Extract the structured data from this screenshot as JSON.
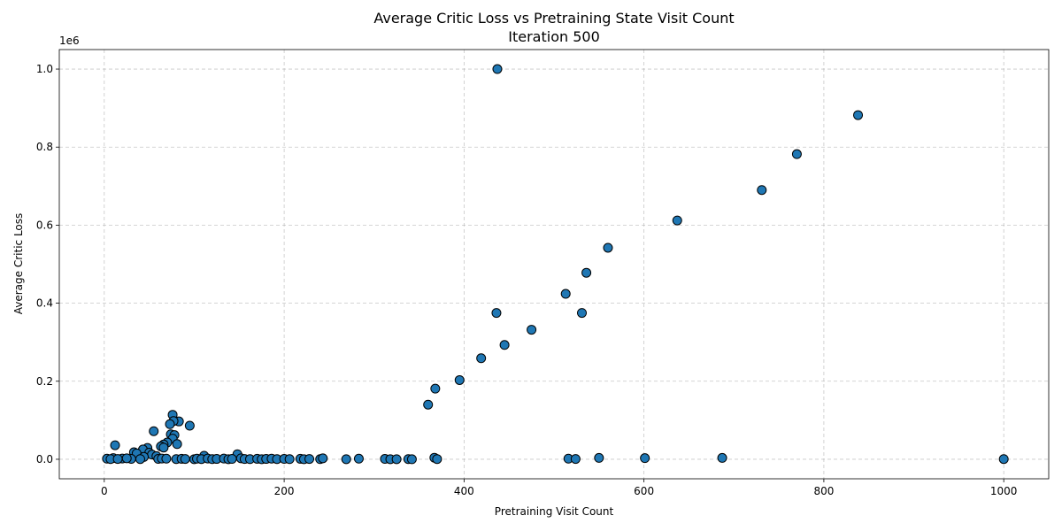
{
  "chart_data": {
    "type": "scatter",
    "title": "Average Critic Loss vs Pretraining State Visit Count",
    "subtitle": "Iteration 500",
    "xlabel": "Pretraining Visit Count",
    "ylabel": "Average Critic Loss",
    "y_offset_label": "1e6",
    "xlim": [
      -50,
      1050
    ],
    "ylim": [
      -50000,
      1050000
    ],
    "x_ticks": [
      0,
      200,
      400,
      600,
      800,
      1000
    ],
    "x_tick_labels": [
      "0",
      "200",
      "400",
      "600",
      "800",
      "1000"
    ],
    "y_ticks": [
      0,
      200000,
      400000,
      600000,
      800000,
      1000000
    ],
    "y_tick_labels": [
      "0.0",
      "0.2",
      "0.4",
      "0.6",
      "0.8",
      "1.0"
    ],
    "grid": true,
    "marker_color": "#1f77b4",
    "marker_edge": "#000000",
    "points": [
      [
        437,
        1000000
      ],
      [
        838,
        882000
      ],
      [
        770,
        782000
      ],
      [
        731,
        690000
      ],
      [
        637,
        612000
      ],
      [
        560,
        542000
      ],
      [
        536,
        478000
      ],
      [
        513,
        424000
      ],
      [
        436,
        375000
      ],
      [
        531,
        375000
      ],
      [
        475,
        332000
      ],
      [
        445,
        293000
      ],
      [
        419,
        259000
      ],
      [
        395,
        203000
      ],
      [
        368,
        181000
      ],
      [
        360,
        140000
      ],
      [
        76,
        114000
      ],
      [
        83,
        97000
      ],
      [
        77,
        98000
      ],
      [
        73,
        90000
      ],
      [
        95,
        86000
      ],
      [
        55,
        72000
      ],
      [
        74,
        64000
      ],
      [
        78,
        62000
      ],
      [
        76,
        53000
      ],
      [
        70,
        43000
      ],
      [
        81,
        39000
      ],
      [
        66,
        38000
      ],
      [
        63,
        33000
      ],
      [
        66,
        30000
      ],
      [
        12,
        36000
      ],
      [
        48,
        29000
      ],
      [
        43,
        25000
      ],
      [
        33,
        18000
      ],
      [
        50,
        17000
      ],
      [
        36,
        15000
      ],
      [
        53,
        12000
      ],
      [
        58,
        8000
      ],
      [
        148,
        13000
      ],
      [
        111,
        9000
      ],
      [
        44,
        6000
      ],
      [
        10,
        3000
      ],
      [
        20,
        2000
      ],
      [
        30,
        1000
      ],
      [
        3,
        1500
      ],
      [
        7,
        500
      ],
      [
        15,
        800
      ],
      [
        25,
        2500
      ],
      [
        40,
        500
      ],
      [
        60,
        1000
      ],
      [
        64,
        2000
      ],
      [
        69,
        1500
      ],
      [
        80,
        500
      ],
      [
        86,
        1200
      ],
      [
        90,
        800
      ],
      [
        100,
        300
      ],
      [
        103,
        1500
      ],
      [
        108,
        600
      ],
      [
        115,
        2000
      ],
      [
        120,
        400
      ],
      [
        125,
        900
      ],
      [
        133,
        1800
      ],
      [
        138,
        300
      ],
      [
        142,
        1000
      ],
      [
        152,
        2500
      ],
      [
        156,
        700
      ],
      [
        162,
        400
      ],
      [
        170,
        1200
      ],
      [
        175,
        300
      ],
      [
        180,
        900
      ],
      [
        186,
        1600
      ],
      [
        192,
        500
      ],
      [
        200,
        1000
      ],
      [
        206,
        400
      ],
      [
        218,
        1200
      ],
      [
        222,
        300
      ],
      [
        228,
        800
      ],
      [
        240,
        400
      ],
      [
        243,
        2500
      ],
      [
        269,
        200
      ],
      [
        283,
        1500
      ],
      [
        312,
        1000
      ],
      [
        318,
        300
      ],
      [
        325,
        200
      ],
      [
        338,
        500
      ],
      [
        342,
        100
      ],
      [
        367,
        4000
      ],
      [
        370,
        600
      ],
      [
        516,
        1500
      ],
      [
        524,
        800
      ],
      [
        550,
        3500
      ],
      [
        601,
        3000
      ],
      [
        687,
        3500
      ],
      [
        1000,
        500
      ]
    ]
  }
}
